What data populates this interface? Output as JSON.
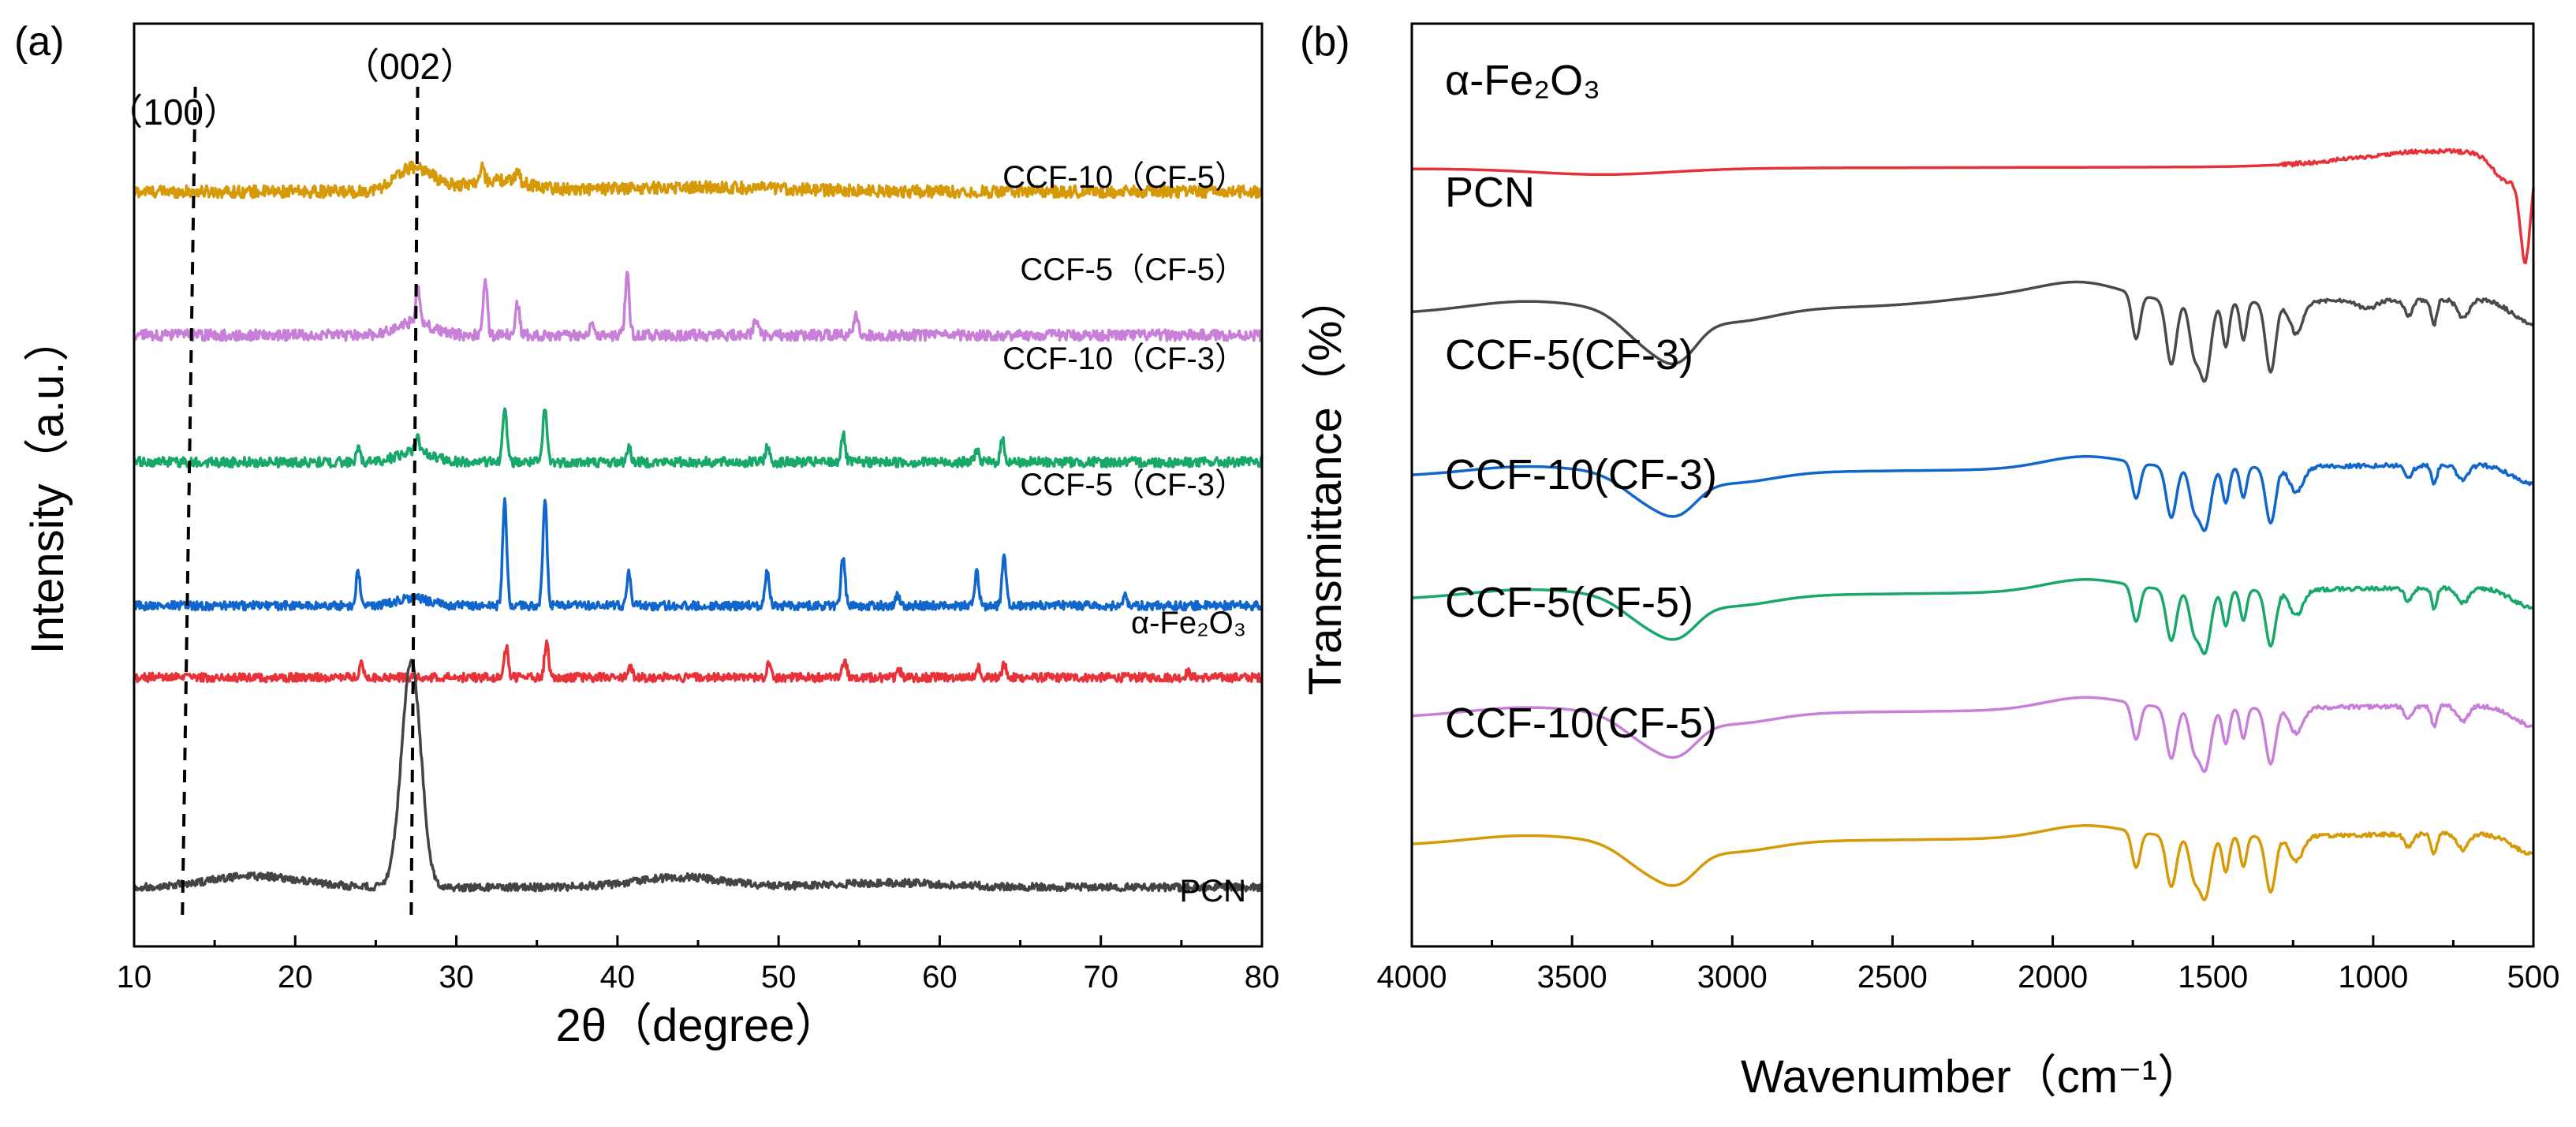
{
  "chart_data": [
    {
      "type": "line",
      "panel_label": "(a)",
      "xlabel": "2θ（degree）",
      "ylabel": "Intensity（a.u.）",
      "xlim": [
        10,
        80
      ],
      "xticks": [
        "10",
        "20",
        "30",
        "40",
        "50",
        "60",
        "70",
        "80"
      ],
      "peak_markers": [
        {
          "label": "（100）",
          "x_bottom": 13.0,
          "x_top": 13.8
        },
        {
          "label": "（002）",
          "x_bottom": 27.2,
          "x_top": 27.6
        }
      ],
      "series": [
        {
          "name": "CCF-10（CF-5）",
          "label": "CCF-10（CF-5）",
          "color": "#d69a09",
          "offset": 6.3,
          "noise": 0.055,
          "broad": [
            {
              "c": 27.4,
              "a": 0.22,
              "w": 1.6
            },
            {
              "c": 32.5,
              "a": 0.1,
              "w": 2.8
            },
            {
              "c": 45,
              "a": 0.04,
              "w": 8
            }
          ],
          "peaks": [
            {
              "c": 31.6,
              "a": 0.12
            },
            {
              "c": 33.8,
              "a": 0.12
            }
          ]
        },
        {
          "name": "CCF-5（CF-5）",
          "label": "CCF-5（CF-5）",
          "color": "#c87fd8",
          "offset": 5.0,
          "noise": 0.05,
          "broad": [
            {
              "c": 27.4,
              "a": 0.12,
              "w": 1.5
            }
          ],
          "peaks": [
            {
              "c": 27.6,
              "a": 0.3
            },
            {
              "c": 31.8,
              "a": 0.5
            },
            {
              "c": 33.8,
              "a": 0.28
            },
            {
              "c": 38.4,
              "a": 0.15
            },
            {
              "c": 40.6,
              "a": 0.55
            },
            {
              "c": 48.6,
              "a": 0.15
            },
            {
              "c": 54.8,
              "a": 0.2
            }
          ]
        },
        {
          "name": "CCF-10（CF-3）",
          "label": "CCF-10（CF-3）",
          "color": "#17a86a",
          "offset": 3.85,
          "noise": 0.045,
          "broad": [
            {
              "c": 27.4,
              "a": 0.1,
              "w": 1.5
            }
          ],
          "peaks": [
            {
              "c": 23.9,
              "a": 0.12
            },
            {
              "c": 27.6,
              "a": 0.12
            },
            {
              "c": 33.0,
              "a": 0.52
            },
            {
              "c": 35.5,
              "a": 0.48
            },
            {
              "c": 40.7,
              "a": 0.14
            },
            {
              "c": 49.3,
              "a": 0.14
            },
            {
              "c": 54.0,
              "a": 0.25
            },
            {
              "c": 62.3,
              "a": 0.12
            },
            {
              "c": 63.9,
              "a": 0.2
            }
          ]
        },
        {
          "name": "CCF-5（CF-3）",
          "label": "CCF-5（CF-3）",
          "color": "#1166cc",
          "offset": 2.55,
          "noise": 0.04,
          "broad": [
            {
              "c": 27.3,
              "a": 0.07,
              "w": 1.4
            }
          ],
          "peaks": [
            {
              "c": 23.9,
              "a": 0.3
            },
            {
              "c": 33.0,
              "a": 0.95
            },
            {
              "c": 35.5,
              "a": 0.95
            },
            {
              "c": 40.7,
              "a": 0.3
            },
            {
              "c": 49.3,
              "a": 0.34
            },
            {
              "c": 54.0,
              "a": 0.45
            },
            {
              "c": 57.4,
              "a": 0.1
            },
            {
              "c": 62.3,
              "a": 0.3
            },
            {
              "c": 64.0,
              "a": 0.45
            },
            {
              "c": 71.5,
              "a": 0.08
            }
          ]
        },
        {
          "name": "α-Fe2O3",
          "label": "α-Fe₂O₃",
          "color": "#e8323a",
          "offset": 1.9,
          "noise": 0.04,
          "broad": [],
          "peaks": [
            {
              "c": 24.1,
              "a": 0.12
            },
            {
              "c": 33.1,
              "a": 0.28
            },
            {
              "c": 35.6,
              "a": 0.32
            },
            {
              "c": 40.8,
              "a": 0.08
            },
            {
              "c": 49.4,
              "a": 0.14
            },
            {
              "c": 54.1,
              "a": 0.16
            },
            {
              "c": 57.5,
              "a": 0.06
            },
            {
              "c": 62.4,
              "a": 0.1
            },
            {
              "c": 64.0,
              "a": 0.12
            },
            {
              "c": 75.4,
              "a": 0.05
            }
          ]
        },
        {
          "name": "PCN",
          "label": "PCN",
          "color": "#444444",
          "offset": 0.0,
          "noise": 0.035,
          "broad": [
            {
              "c": 17.5,
              "a": 0.1,
              "w": 4
            },
            {
              "c": 27.2,
              "a": 2.05,
              "w": 0.85
            },
            {
              "c": 44,
              "a": 0.09,
              "w": 4
            },
            {
              "c": 57,
              "a": 0.04,
              "w": 5
            }
          ],
          "peaks": []
        }
      ]
    },
    {
      "type": "line",
      "panel_label": "(b)",
      "xlabel": "Wavenumber（cm⁻¹）",
      "ylabel": "Transmittance（%）",
      "xlim": [
        4000,
        500
      ],
      "xticks": [
        "4000",
        "3500",
        "3000",
        "2500",
        "2000",
        "1500",
        "1000",
        "500"
      ],
      "series": [
        {
          "name": "α-Fe2O3",
          "label": "α-Fe₂O₃",
          "color": "#e8323a",
          "offset": 7.55,
          "kind": "fe2o3"
        },
        {
          "name": "PCN",
          "label": "PCN",
          "color": "#4a4a4a",
          "offset": 6.2,
          "kind": "pcn"
        },
        {
          "name": "CCF-5(CF-3)",
          "label": "CCF-5(CF-3)",
          "color": "#1166cc",
          "offset": 4.6,
          "kind": "ccf"
        },
        {
          "name": "CCF-10(CF-3)",
          "label": "CCF-10(CF-3)",
          "color": "#17a86a",
          "offset": 3.4,
          "kind": "ccf"
        },
        {
          "name": "CCF-5(CF-5)",
          "label": "CCF-5(CF-5)",
          "color": "#c87fd8",
          "offset": 2.25,
          "kind": "ccf"
        },
        {
          "name": "CCF-10(CF-5)",
          "label": "CCF-10(CF-5)",
          "color": "#d69a09",
          "offset": 1.0,
          "kind": "ccf"
        }
      ]
    }
  ]
}
